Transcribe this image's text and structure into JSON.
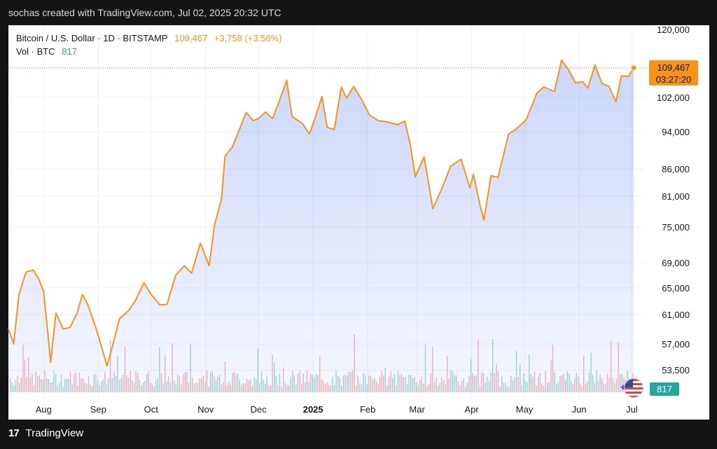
{
  "header": {
    "credit": "sochas created with TradingView.com, Jul 02, 2025 20:32 UTC"
  },
  "legend": {
    "symbol": "Bitcoin / U.S. Dollar · 1D · BITSTAMP",
    "last": "109,467",
    "change": "+3,758 (+3.56%)",
    "vol_label": "Vol · BTC",
    "vol_value": "817"
  },
  "badges": {
    "price": "109,467",
    "countdown": "03:27:20",
    "volume": "817"
  },
  "footer": {
    "brand": "TradingView"
  },
  "colors": {
    "line": "#f7931a",
    "area": "#5b7ff0",
    "volume_up": "#26a69a",
    "volume_down": "#ef5350",
    "grid": "#eef0f3",
    "last_price_line": "#ef5350"
  },
  "chart_data": {
    "type": "area",
    "title": "Bitcoin / U.S. Dollar · 1D · BITSTAMP",
    "y_ticks": [
      120000,
      102000,
      94000,
      86000,
      81000,
      75000,
      69000,
      65000,
      61000,
      57000,
      53500
    ],
    "y_tick_labels": [
      "120,000",
      "102,000",
      "94,000",
      "86,000",
      "81,000",
      "75,000",
      "69,000",
      "65,000",
      "61,000",
      "57,000",
      "53,500"
    ],
    "y_scale": "log",
    "x_range": [
      "2024-07-12",
      "2025-07-02"
    ],
    "x_ticks": [
      {
        "label": "Aug",
        "date": "2024-08-01"
      },
      {
        "label": "Sep",
        "date": "2024-09-01"
      },
      {
        "label": "Oct",
        "date": "2024-10-01"
      },
      {
        "label": "Nov",
        "date": "2024-11-01"
      },
      {
        "label": "Dec",
        "date": "2024-12-01"
      },
      {
        "label": "2025",
        "date": "2025-01-01"
      },
      {
        "label": "Feb",
        "date": "2025-02-01"
      },
      {
        "label": "Mar",
        "date": "2025-03-01"
      },
      {
        "label": "Apr",
        "date": "2025-04-01"
      },
      {
        "label": "May",
        "date": "2025-05-01"
      },
      {
        "label": "Jun",
        "date": "2025-06-01"
      },
      {
        "label": "Jul",
        "date": "2025-07-01"
      }
    ],
    "grid": true,
    "last_price": 109467,
    "series": [
      {
        "type": "line",
        "x": [
          "2024-07-12",
          "2024-07-15",
          "2024-07-18",
          "2024-07-22",
          "2024-07-26",
          "2024-07-29",
          "2024-08-01",
          "2024-08-05",
          "2024-08-08",
          "2024-08-12",
          "2024-08-16",
          "2024-08-20",
          "2024-08-23",
          "2024-08-26",
          "2024-08-31",
          "2024-09-06",
          "2024-09-10",
          "2024-09-13",
          "2024-09-18",
          "2024-09-22",
          "2024-09-27",
          "2024-10-01",
          "2024-10-06",
          "2024-10-10",
          "2024-10-15",
          "2024-10-20",
          "2024-10-24",
          "2024-10-29",
          "2024-11-03",
          "2024-11-06",
          "2024-11-10",
          "2024-11-12",
          "2024-11-16",
          "2024-11-20",
          "2024-11-24",
          "2024-11-28",
          "2024-12-01",
          "2024-12-05",
          "2024-12-09",
          "2024-12-13",
          "2024-12-17",
          "2024-12-20",
          "2024-12-26",
          "2024-12-30",
          "2025-01-02",
          "2025-01-06",
          "2025-01-09",
          "2025-01-13",
          "2025-01-17",
          "2025-01-20",
          "2025-01-24",
          "2025-01-28",
          "2025-02-02",
          "2025-02-07",
          "2025-02-12",
          "2025-02-18",
          "2025-02-22",
          "2025-02-25",
          "2025-02-28",
          "2025-03-02",
          "2025-03-05",
          "2025-03-10",
          "2025-03-16",
          "2025-03-20",
          "2025-03-26",
          "2025-03-31",
          "2025-04-02",
          "2025-04-06",
          "2025-04-08",
          "2025-04-12",
          "2025-04-16",
          "2025-04-22",
          "2025-04-26",
          "2025-05-02",
          "2025-05-08",
          "2025-05-12",
          "2025-05-18",
          "2025-05-22",
          "2025-05-26",
          "2025-05-30",
          "2025-06-03",
          "2025-06-06",
          "2025-06-10",
          "2025-06-14",
          "2025-06-18",
          "2025-06-22",
          "2025-06-25",
          "2025-06-29",
          "2025-07-02"
        ],
        "values": [
          59000,
          57000,
          64000,
          67500,
          67800,
          66500,
          64500,
          54500,
          61200,
          59000,
          59200,
          61200,
          64000,
          62500,
          58900,
          54000,
          57500,
          60400,
          61500,
          63000,
          65800,
          64000,
          62400,
          62500,
          67000,
          68500,
          67300,
          72200,
          68500,
          75300,
          80500,
          88700,
          90500,
          94300,
          98400,
          96500,
          97000,
          98500,
          97000,
          101300,
          106300,
          97500,
          95800,
          93500,
          97000,
          102200,
          95000,
          94500,
          104600,
          101800,
          104700,
          101900,
          97800,
          96500,
          96200,
          95600,
          96400,
          91500,
          84500,
          86000,
          88500,
          78500,
          83000,
          86500,
          88000,
          82500,
          85000,
          78800,
          76300,
          84700,
          84400,
          93500,
          94500,
          96700,
          103000,
          104600,
          103400,
          111500,
          109000,
          105600,
          105900,
          104300,
          110200,
          105500,
          104700,
          100900,
          107400,
          107200,
          109467
        ]
      }
    ],
    "volume": {
      "label": "Vol · BTC",
      "last": 817
    }
  }
}
